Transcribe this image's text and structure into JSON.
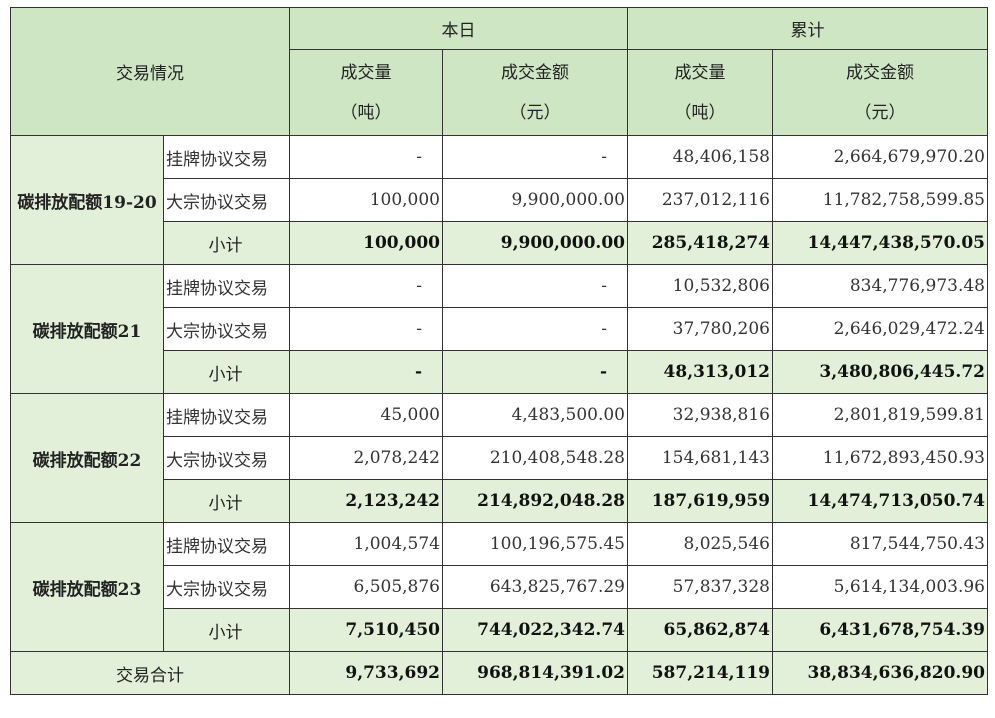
{
  "header": {
    "row_label": "交易情况",
    "today": "本日",
    "cumulative": "累计",
    "volume": "成交量",
    "volume_unit": "（吨）",
    "amount": "成交金额",
    "amount_unit": "（元）"
  },
  "groups": [
    {
      "name": "碳排放配额19-20",
      "rows": [
        {
          "type": "挂牌协议交易",
          "today_volume": "-",
          "today_amount": "-",
          "cum_volume": "48,406,158",
          "cum_amount": "2,664,679,970.20"
        },
        {
          "type": "大宗协议交易",
          "today_volume": "100,000",
          "today_amount": "9,900,000.00",
          "cum_volume": "237,012,116",
          "cum_amount": "11,782,758,599.85"
        }
      ],
      "subtotal": {
        "label": "小计",
        "today_volume": "100,000",
        "today_amount": "9,900,000.00",
        "cum_volume": "285,418,274",
        "cum_amount": "14,447,438,570.05"
      }
    },
    {
      "name": "碳排放配额21",
      "rows": [
        {
          "type": "挂牌协议交易",
          "today_volume": "-",
          "today_amount": "-",
          "cum_volume": "10,532,806",
          "cum_amount": "834,776,973.48"
        },
        {
          "type": "大宗协议交易",
          "today_volume": "-",
          "today_amount": "-",
          "cum_volume": "37,780,206",
          "cum_amount": "2,646,029,472.24"
        }
      ],
      "subtotal": {
        "label": "小计",
        "today_volume": "-",
        "today_amount": "-",
        "cum_volume": "48,313,012",
        "cum_amount": "3,480,806,445.72"
      }
    },
    {
      "name": "碳排放配额22",
      "rows": [
        {
          "type": "挂牌协议交易",
          "today_volume": "45,000",
          "today_amount": "4,483,500.00",
          "cum_volume": "32,938,816",
          "cum_amount": "2,801,819,599.81"
        },
        {
          "type": "大宗协议交易",
          "today_volume": "2,078,242",
          "today_amount": "210,408,548.28",
          "cum_volume": "154,681,143",
          "cum_amount": "11,672,893,450.93"
        }
      ],
      "subtotal": {
        "label": "小计",
        "today_volume": "2,123,242",
        "today_amount": "214,892,048.28",
        "cum_volume": "187,619,959",
        "cum_amount": "14,474,713,050.74"
      }
    },
    {
      "name": "碳排放配额23",
      "rows": [
        {
          "type": "挂牌协议交易",
          "today_volume": "1,004,574",
          "today_amount": "100,196,575.45",
          "cum_volume": "8,025,546",
          "cum_amount": "817,544,750.43"
        },
        {
          "type": "大宗协议交易",
          "today_volume": "6,505,876",
          "today_amount": "643,825,767.29",
          "cum_volume": "57,837,328",
          "cum_amount": "5,614,134,003.96"
        }
      ],
      "subtotal": {
        "label": "小计",
        "today_volume": "7,510,450",
        "today_amount": "744,022,342.74",
        "cum_volume": "65,862,874",
        "cum_amount": "6,431,678,754.39"
      }
    }
  ],
  "total": {
    "label": "交易合计",
    "today_volume": "9,733,692",
    "today_amount": "968,814,391.02",
    "cum_volume": "587,214,119",
    "cum_amount": "38,834,636,820.90"
  },
  "colors": {
    "header_bg": "#cfe6c4",
    "category_bg": "#e2f0da",
    "border": "#333333"
  }
}
